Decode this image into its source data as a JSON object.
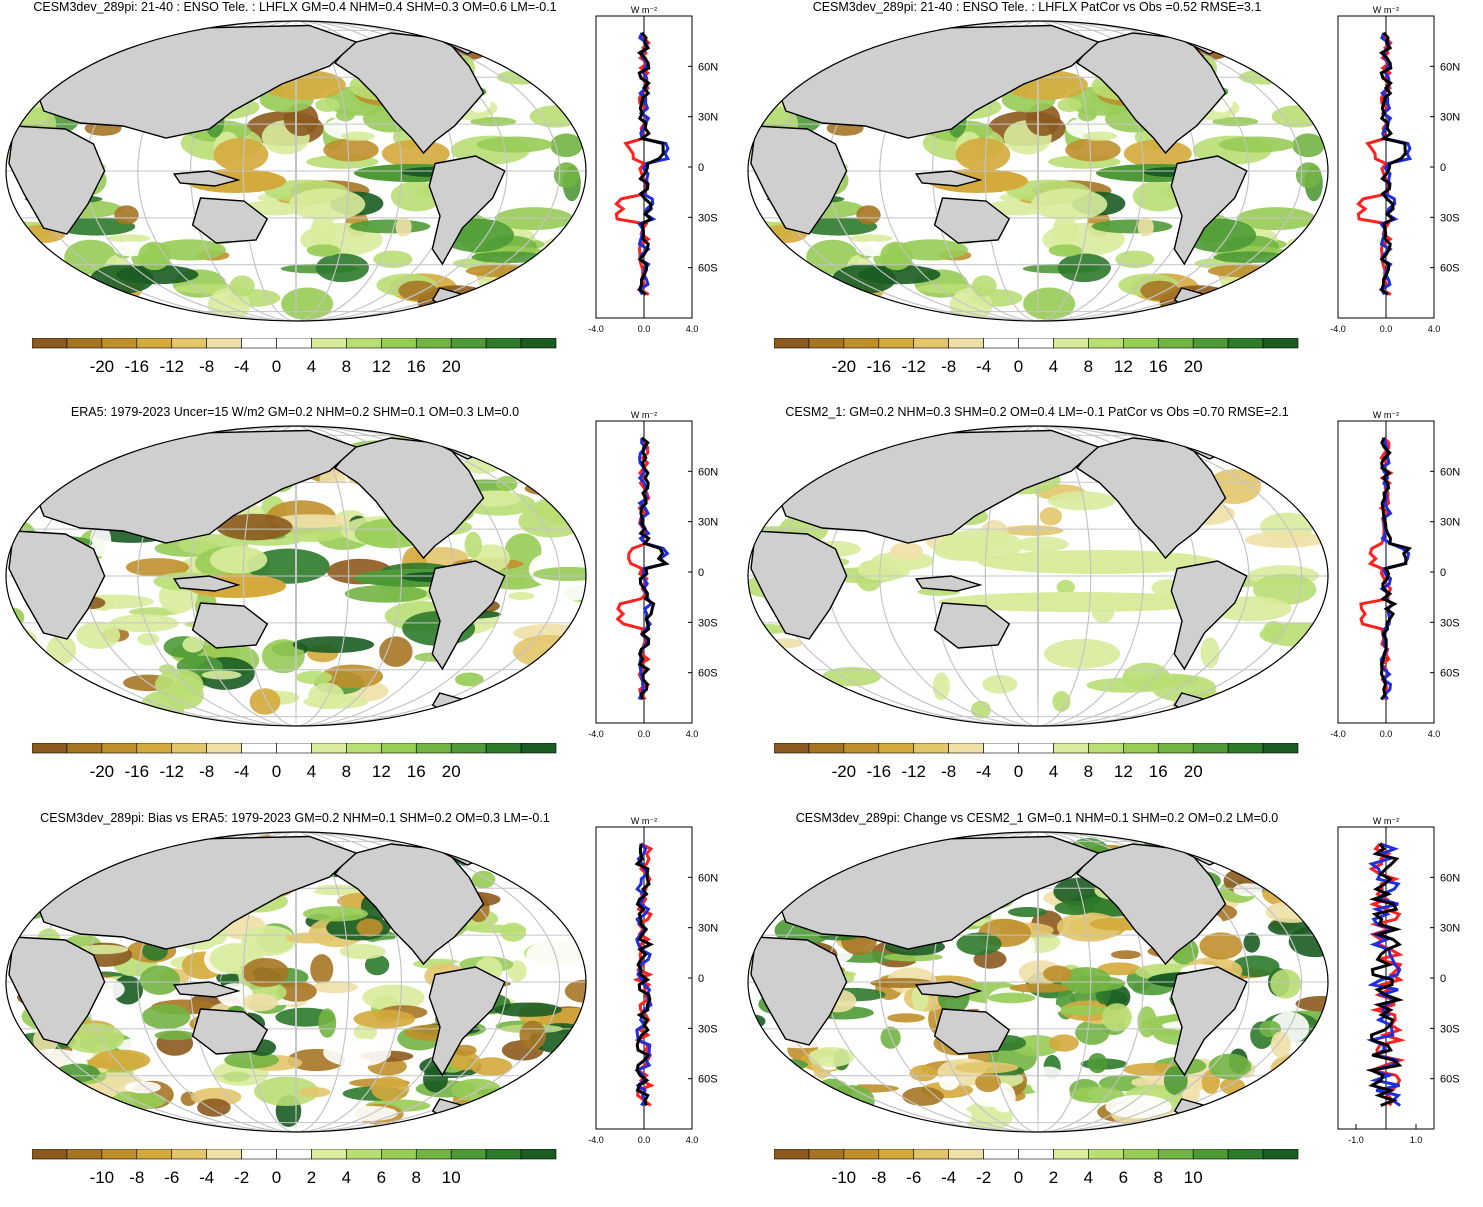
{
  "panels": [
    {
      "title": "CESM3dev_289pi: 21-40 : ENSO Tele. : LHFLX GM=0.4 NHM=0.4 SHM=0.3 OM=0.6 LM=-0.1",
      "colorbar": {
        "labels": [
          "-20",
          "-16",
          "-12",
          "-8",
          "-4",
          "0",
          "4",
          "8",
          "12",
          "16",
          "20"
        ]
      },
      "zonal": {
        "units": "W m⁻²",
        "xticks": [
          "-4.0",
          "0.0",
          "4.0"
        ],
        "xrange": [
          -4,
          4
        ],
        "lat_labels": [
          "60N",
          "30N",
          "0",
          "30S",
          "60S"
        ]
      },
      "variant": 0
    },
    {
      "title": "CESM3dev_289pi: 21-40 : ENSO Tele. : LHFLX PatCor vs Obs =0.52 RMSE=3.1",
      "colorbar": {
        "labels": [
          "-20",
          "-16",
          "-12",
          "-8",
          "-4",
          "0",
          "4",
          "8",
          "12",
          "16",
          "20"
        ]
      },
      "zonal": {
        "units": "W m⁻²",
        "xticks": [
          "-4.0",
          "0.0",
          "4.0"
        ],
        "xrange": [
          -4,
          4
        ],
        "lat_labels": [
          "60N",
          "30N",
          "0",
          "30S",
          "60S"
        ]
      },
      "variant": 0
    },
    {
      "title": "ERA5: 1979-2023 Uncer=15 W/m2 GM=0.2 NHM=0.2 SHM=0.1 OM=0.3 LM=0.0",
      "colorbar": {
        "labels": [
          "-20",
          "-16",
          "-12",
          "-8",
          "-4",
          "0",
          "4",
          "8",
          "12",
          "16",
          "20"
        ]
      },
      "zonal": {
        "units": "W m⁻²",
        "xticks": [
          "-4.0",
          "0.0",
          "4.0"
        ],
        "xrange": [
          -4,
          4
        ],
        "lat_labels": [
          "60N",
          "30N",
          "0",
          "30S",
          "60S"
        ]
      },
      "variant": 1
    },
    {
      "title": "CESM2_1: GM=0.2 NHM=0.3 SHM=0.2 OM=0.4 LM=-0.1 PatCor vs Obs =0.70 RMSE=2.1",
      "colorbar": {
        "labels": [
          "-20",
          "-16",
          "-12",
          "-8",
          "-4",
          "0",
          "4",
          "8",
          "12",
          "16",
          "20"
        ]
      },
      "zonal": {
        "units": "W m⁻²",
        "xticks": [
          "-4.0",
          "0.0",
          "4.0"
        ],
        "xrange": [
          -4,
          4
        ],
        "lat_labels": [
          "60N",
          "30N",
          "0",
          "30S",
          "60S"
        ]
      },
      "variant": 2
    },
    {
      "title": "CESM3dev_289pi: Bias vs ERA5: 1979-2023 GM=0.2 NHM=0.1 SHM=0.2 OM=0.3 LM=-0.1",
      "colorbar": {
        "labels": [
          "-10",
          "-8",
          "-6",
          "-4",
          "-2",
          "0",
          "2",
          "4",
          "6",
          "8",
          "10"
        ]
      },
      "zonal": {
        "units": "W m⁻²",
        "xticks": [
          "-4.0",
          "0.0",
          "4.0"
        ],
        "xrange": [
          -4,
          4
        ],
        "lat_labels": [
          "60N",
          "30N",
          "0",
          "30S",
          "60S"
        ]
      },
      "variant": 3
    },
    {
      "title": "CESM3dev_289pi: Change vs CESM2_1 GM=0.1 NHM=0.1 SHM=0.2 OM=0.2 LM=0.0",
      "colorbar": {
        "labels": [
          "-10",
          "-8",
          "-6",
          "-4",
          "-2",
          "0",
          "2",
          "4",
          "6",
          "8",
          "10"
        ]
      },
      "zonal": {
        "units": "W m⁻²",
        "xticks": [
          "-1.0",
          "1.0"
        ],
        "xrange": [
          -1.6,
          1.6
        ],
        "lat_labels": [
          "60N",
          "30N",
          "0",
          "30S",
          "60S"
        ]
      },
      "variant": 4
    }
  ],
  "colors": {
    "palette": [
      "#8c5a1e",
      "#a67524",
      "#bf8f2b",
      "#d4aa3c",
      "#e3c56c",
      "#efe0a7",
      "#ffffff",
      "#ffffff",
      "#d8ec9c",
      "#b9de74",
      "#97cc55",
      "#72b443",
      "#4e9a36",
      "#2d7a2b",
      "#1a5c22"
    ],
    "land": "#cfcfcf",
    "line_red": "#ff2020",
    "line_blue": "#1f2fe0",
    "line_black": "#000000"
  }
}
